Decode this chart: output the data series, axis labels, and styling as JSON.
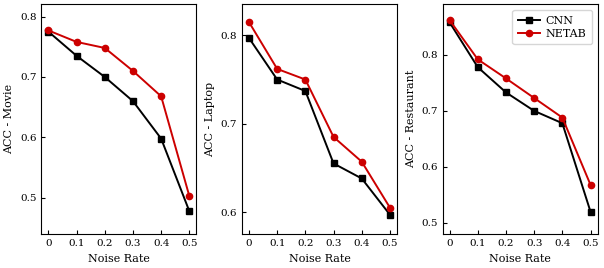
{
  "noise_rate": [
    0,
    0.1,
    0.2,
    0.3,
    0.4,
    0.5
  ],
  "movie": {
    "cnn": [
      0.775,
      0.735,
      0.7,
      0.66,
      0.598,
      0.478
    ],
    "netab": [
      0.777,
      0.758,
      0.748,
      0.71,
      0.668,
      0.503
    ]
  },
  "laptop": {
    "cnn": [
      0.797,
      0.75,
      0.737,
      0.655,
      0.638,
      0.597
    ],
    "netab": [
      0.815,
      0.762,
      0.75,
      0.685,
      0.657,
      0.605
    ]
  },
  "restaurant": {
    "cnn": [
      0.858,
      0.778,
      0.733,
      0.7,
      0.678,
      0.52
    ],
    "netab": [
      0.862,
      0.792,
      0.758,
      0.723,
      0.688,
      0.568
    ]
  },
  "ylim_movie": [
    0.44,
    0.82
  ],
  "ylim_laptop": [
    0.575,
    0.835
  ],
  "ylim_restaurant": [
    0.48,
    0.89
  ],
  "yticks_movie": [
    0.5,
    0.6,
    0.7,
    0.8
  ],
  "yticks_laptop": [
    0.6,
    0.7,
    0.8
  ],
  "yticks_restaurant": [
    0.5,
    0.6,
    0.7,
    0.8
  ],
  "cnn_color": "#000000",
  "netab_color": "#cc0000",
  "cnn_marker": "s",
  "netab_marker": "o",
  "xlabel": "Noise Rate",
  "ylabel_movie": "ACC - Movie",
  "ylabel_laptop": "ACC - Laptop",
  "ylabel_restaurant": "ACC - Restaurant",
  "legend_labels": [
    "CNN",
    "NETAB"
  ],
  "linewidth": 1.4,
  "markersize": 4.5
}
